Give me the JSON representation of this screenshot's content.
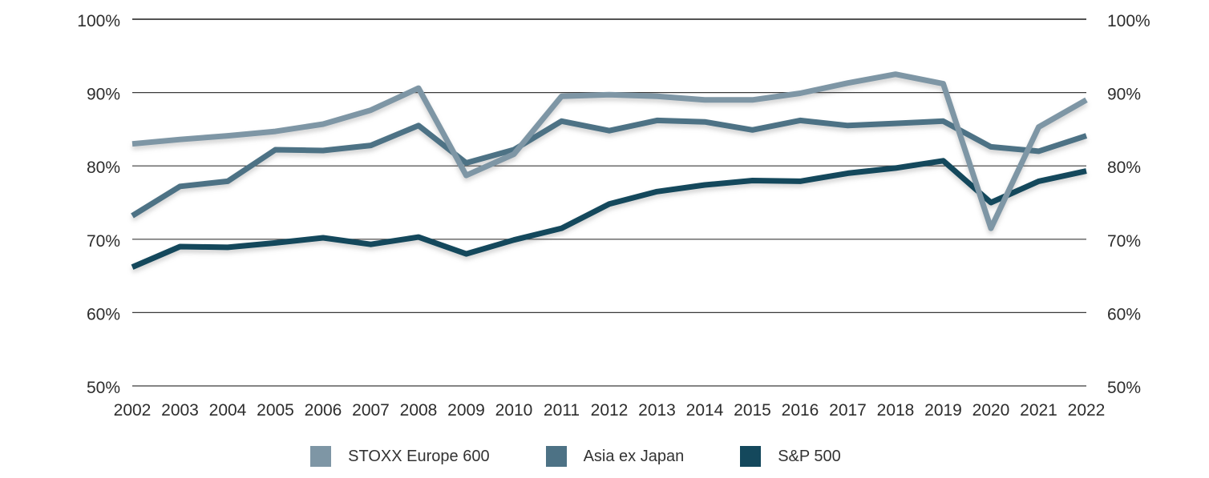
{
  "chart_data": {
    "type": "line",
    "title": "",
    "categories": [
      "2002",
      "2003",
      "2004",
      "2005",
      "2006",
      "2007",
      "2008",
      "2009",
      "2010",
      "2011",
      "2012",
      "2013",
      "2014",
      "2015",
      "2016",
      "2017",
      "2018",
      "2019",
      "2020",
      "2021",
      "2022"
    ],
    "series": [
      {
        "name": "STOXX Europe 600",
        "color": "#7E96A5",
        "values": [
          83.0,
          83.6,
          84.1,
          84.7,
          85.7,
          87.6,
          90.6,
          78.7,
          81.6,
          89.5,
          89.7,
          89.5,
          89.0,
          89.0,
          89.9,
          91.3,
          92.5,
          91.2,
          71.5,
          85.3,
          89.0
        ]
      },
      {
        "name": "Asia ex Japan",
        "color": "#4D7285",
        "values": [
          73.2,
          77.2,
          77.9,
          82.2,
          82.1,
          82.8,
          85.5,
          80.4,
          82.2,
          86.1,
          84.8,
          86.2,
          86.0,
          84.9,
          86.2,
          85.5,
          85.8,
          86.1,
          82.6,
          82.0,
          84.1
        ]
      },
      {
        "name": "S&P 500",
        "color": "#14485C",
        "values": [
          66.2,
          69.0,
          68.9,
          69.5,
          70.2,
          69.3,
          70.3,
          68.0,
          69.9,
          71.5,
          74.8,
          76.5,
          77.4,
          78.0,
          77.9,
          79.0,
          79.7,
          80.7,
          75.0,
          77.9,
          79.3
        ]
      }
    ],
    "xlabel": "",
    "ylabel": "",
    "y_axis": {
      "min": 50,
      "max": 100,
      "ticks": [
        {
          "label": "100%",
          "value": 100
        },
        {
          "label": "90%",
          "value": 90
        },
        {
          "label": "80%",
          "value": 80
        },
        {
          "label": "70%",
          "value": 70
        },
        {
          "label": "60%",
          "value": 60
        },
        {
          "label": "50%",
          "value": 50
        }
      ],
      "labels_on_both_sides": true
    },
    "grid": "horizontal",
    "legend_position": "bottom-center",
    "grid_color": "#3a3a3a",
    "text_color": "#2d2d2d"
  }
}
